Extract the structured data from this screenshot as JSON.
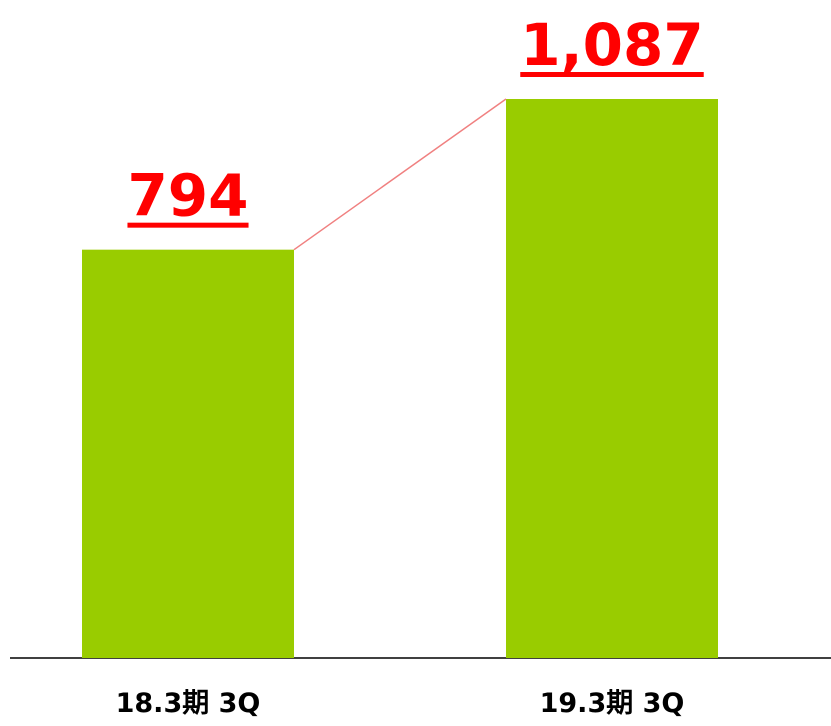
{
  "chart_data": {
    "type": "bar",
    "categories": [
      "18.3期 3Q",
      "19.3期 3Q"
    ],
    "values": [
      794,
      1087
    ],
    "value_labels": [
      "794",
      "1,087"
    ],
    "color": "#99cc00",
    "label_color": "#ff0000",
    "connector_color": "#f08080"
  }
}
